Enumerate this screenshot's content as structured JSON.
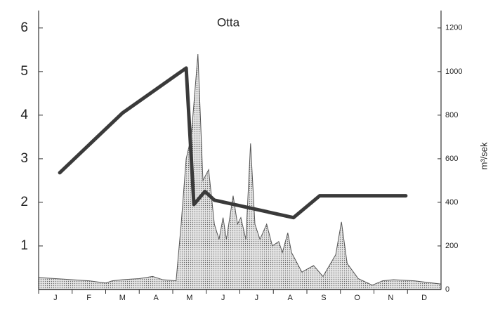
{
  "chart_data": {
    "type": "line-area",
    "title": "Otta",
    "y2label": "m³/sek",
    "categories": [
      "J",
      "F",
      "M",
      "A",
      "M",
      "J",
      "J",
      "A",
      "S",
      "O",
      "N",
      "D"
    ],
    "xlim": [
      0,
      12
    ],
    "ylim": [
      0,
      6.4
    ],
    "yticks": [
      1,
      2,
      3,
      4,
      5,
      6
    ],
    "y2lim": [
      0,
      1280
    ],
    "y2ticks": [
      0,
      200,
      400,
      600,
      800,
      1000,
      1200
    ],
    "series": [
      {
        "type": "area",
        "axis": "y2",
        "color": "#bbbbbb",
        "x": [
          0,
          0.5,
          1.0,
          1.5,
          2.0,
          2.2,
          2.5,
          3.0,
          3.4,
          3.7,
          4.1,
          4.25,
          4.4,
          4.55,
          4.75,
          4.9,
          5.07,
          5.24,
          5.38,
          5.5,
          5.6,
          5.8,
          5.93,
          6.03,
          6.18,
          6.32,
          6.45,
          6.6,
          6.8,
          6.97,
          7.16,
          7.27,
          7.43,
          7.54,
          7.85,
          8.2,
          8.48,
          8.86,
          9.03,
          9.2,
          9.53,
          9.95,
          10.26,
          10.58,
          11.2,
          12
        ],
        "values": [
          55,
          50,
          45,
          40,
          30,
          40,
          45,
          50,
          60,
          45,
          40,
          300,
          600,
          700,
          1080,
          500,
          550,
          300,
          230,
          330,
          230,
          430,
          300,
          330,
          230,
          670,
          300,
          230,
          300,
          200,
          220,
          170,
          260,
          170,
          80,
          110,
          60,
          160,
          310,
          120,
          50,
          20,
          40,
          45,
          40,
          25
        ]
      },
      {
        "type": "line",
        "axis": "y",
        "color": "#3a3a3a",
        "x": [
          0.63,
          2.5,
          4.4,
          4.63,
          4.96,
          5.24,
          7.6,
          8.38,
          10.95
        ],
        "values": [
          2.68,
          4.05,
          5.08,
          1.95,
          2.25,
          2.05,
          1.65,
          2.15,
          2.15
        ]
      }
    ]
  }
}
